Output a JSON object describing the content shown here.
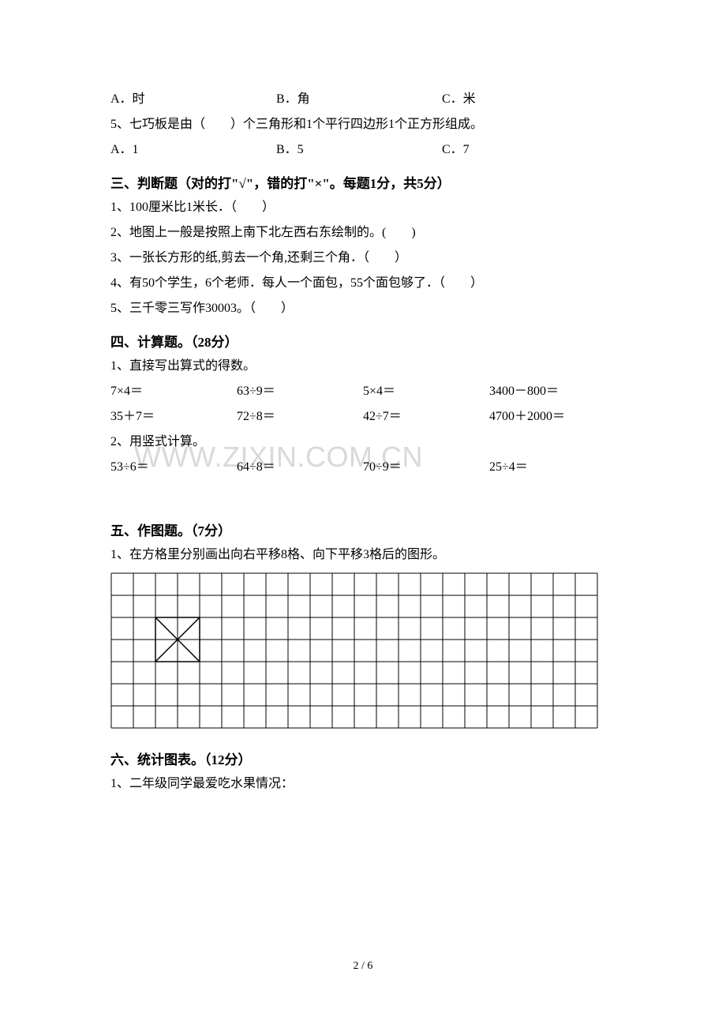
{
  "q_a_line": {
    "a": "A．时",
    "b": "B．角",
    "c": "C．米"
  },
  "q5_text": "5、七巧板是由（　　）个三角形和1个平行四边形1个正方形组成。",
  "q5_choices": {
    "a": "A．1",
    "b": "B．5",
    "c": "C．7"
  },
  "section3_title": "三、判断题（对的打\"√\"，错的打\"×\"。每题1分，共5分）",
  "judge": {
    "j1": "1、100厘米比1米长．（　　）",
    "j2": "2、地图上一般是按照上南下北左西右东绘制的。(　　)",
    "j3": "3、一张长方形的纸,剪去一个角,还剩三个角．（　　）",
    "j4": "4、有50个学生，6个老师．每人一个面包，55个面包够了．（　　）",
    "j5": "5、三千零三写作30003。（　　）"
  },
  "section4_title": "四、计算题。（28分）",
  "calc1_label": "1、直接写出算式的得数。",
  "calc1_row1": {
    "a": "7×4＝",
    "b": "63÷9＝",
    "c": "5×4＝",
    "d": "3400－800＝"
  },
  "calc1_row2": {
    "a": "35＋7＝",
    "b": "72÷8＝",
    "c": "42÷7＝",
    "d": "4700＋2000＝"
  },
  "calc2_label": "2、用竖式计算。",
  "calc2_row": {
    "a": "53÷6＝",
    "b": "64÷8＝",
    "c": "70÷9＝",
    "d": "25÷4＝"
  },
  "section5_title": "五、作图题。（7分）",
  "draw1": "1、在方格里分别画出向右平移8格、向下平移3格后的图形。",
  "grid": {
    "cols": 22,
    "rows": 7,
    "cell_size": 28,
    "stroke": "#000000",
    "stroke_width": 1,
    "triangles": {
      "base_col": 2,
      "base_row": 2,
      "span": 2
    }
  },
  "section6_title": "六、统计图表。（12分）",
  "stat1": "1、二年级同学最爱吃水果情况：",
  "watermark_text": "WWW.ZIXIN.COM.CN",
  "footer": "2 / 6"
}
